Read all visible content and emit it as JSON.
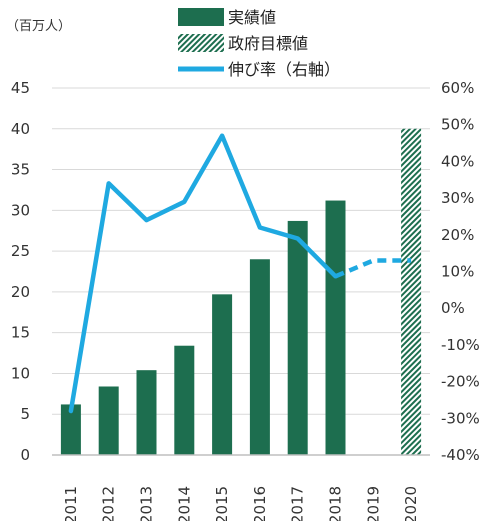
{
  "chart_data": {
    "type": "bar",
    "unit_label": "（百万人）",
    "categories": [
      "2011",
      "2012",
      "2013",
      "2014",
      "2015",
      "2016",
      "2017",
      "2018",
      "2019",
      "2020"
    ],
    "series": [
      {
        "name": "実績値",
        "kind": "bar",
        "color": "#1d6e4f",
        "values": [
          6.2,
          8.4,
          10.4,
          13.4,
          19.7,
          24.0,
          28.7,
          31.2,
          null,
          null
        ]
      },
      {
        "name": "政府目標値",
        "kind": "bar-hatched",
        "color": "#1d6e4f",
        "values": [
          null,
          null,
          null,
          null,
          null,
          null,
          null,
          null,
          null,
          40.0
        ]
      },
      {
        "name": "伸び率（右軸）",
        "kind": "line",
        "axis": "right",
        "color": "#1fa9e1",
        "values": [
          -0.28,
          0.34,
          0.24,
          0.29,
          0.47,
          0.22,
          0.19,
          0.087,
          0.13,
          0.13
        ],
        "dashed_from_index": 7
      }
    ],
    "ylim": [
      0,
      45
    ],
    "yticks": [
      "0",
      "5",
      "10",
      "15",
      "20",
      "25",
      "30",
      "35",
      "40",
      "45"
    ],
    "y2lim": [
      -0.4,
      0.6
    ],
    "y2ticks": [
      "-40%",
      "-30%",
      "-20%",
      "-10%",
      "0%",
      "10%",
      "20%",
      "30%",
      "40%",
      "50%",
      "60%"
    ],
    "legend_position": "top"
  }
}
